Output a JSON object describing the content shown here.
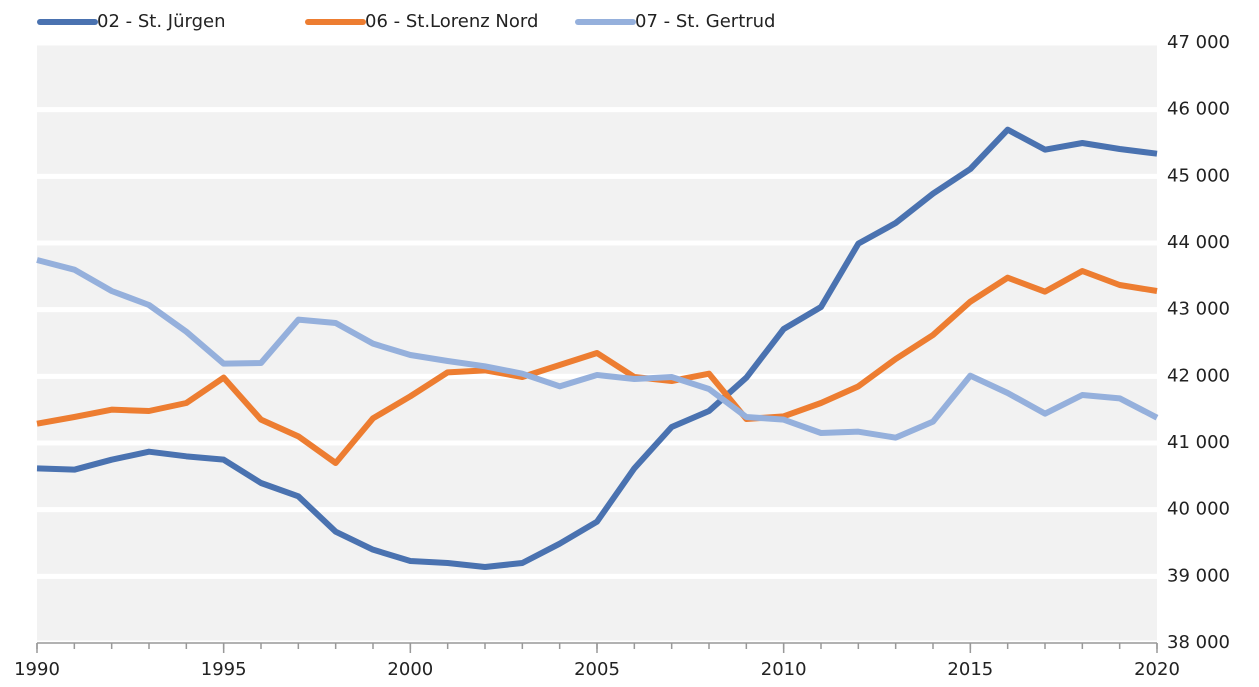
{
  "chart_data": {
    "type": "line",
    "x": [
      1990,
      1991,
      1992,
      1993,
      1994,
      1995,
      1996,
      1997,
      1998,
      1999,
      2000,
      2001,
      2002,
      2003,
      2004,
      2005,
      2006,
      2007,
      2008,
      2009,
      2010,
      2011,
      2012,
      2013,
      2014,
      2015,
      2016,
      2017,
      2018,
      2019,
      2020
    ],
    "xlim": [
      1990,
      2020
    ],
    "xticks": [
      1990,
      1995,
      2000,
      2005,
      2010,
      2015,
      2020
    ],
    "ylim": [
      38000,
      47000
    ],
    "yticks": [
      {
        "value": 38000,
        "label": "38 000"
      },
      {
        "value": 39000,
        "label": "39 000"
      },
      {
        "value": 40000,
        "label": "40 000"
      },
      {
        "value": 41000,
        "label": "41 000"
      },
      {
        "value": 42000,
        "label": "42 000"
      },
      {
        "value": 43000,
        "label": "43 000"
      },
      {
        "value": 44000,
        "label": "44 000"
      },
      {
        "value": 45000,
        "label": "45 000"
      },
      {
        "value": 46000,
        "label": "46 000"
      },
      {
        "value": 47000,
        "label": "47 000"
      }
    ],
    "grid": true,
    "legend": "top",
    "series": [
      {
        "name": "02 - St. Jürgen",
        "color": "#4a72b0",
        "values": [
          40620,
          40600,
          40750,
          40870,
          40800,
          40750,
          40400,
          40200,
          39670,
          39400,
          39230,
          39200,
          39140,
          39200,
          39490,
          39820,
          40620,
          41240,
          41480,
          41980,
          42710,
          43040,
          43990,
          44300,
          44740,
          45110,
          45700,
          45400,
          45500,
          45410,
          45340
        ]
      },
      {
        "name": "06 - St.Lorenz Nord",
        "color": "#ed7d31",
        "values": [
          41290,
          41390,
          41500,
          41480,
          41600,
          41980,
          41350,
          41100,
          40700,
          41370,
          41700,
          42060,
          42090,
          41990,
          42170,
          42350,
          41990,
          41930,
          42040,
          41360,
          41400,
          41600,
          41850,
          42260,
          42620,
          43120,
          43480,
          43270,
          43580,
          43370,
          43280
        ]
      },
      {
        "name": "07 - St. Gertrud",
        "color": "#95b0dc",
        "values": [
          43745,
          43600,
          43280,
          43070,
          42670,
          42190,
          42200,
          42850,
          42800,
          42490,
          42320,
          42230,
          42150,
          42040,
          41850,
          42020,
          41960,
          41990,
          41810,
          41390,
          41350,
          41150,
          41170,
          41080,
          41320,
          42010,
          41750,
          41440,
          41720,
          41670,
          41380
        ]
      }
    ]
  }
}
